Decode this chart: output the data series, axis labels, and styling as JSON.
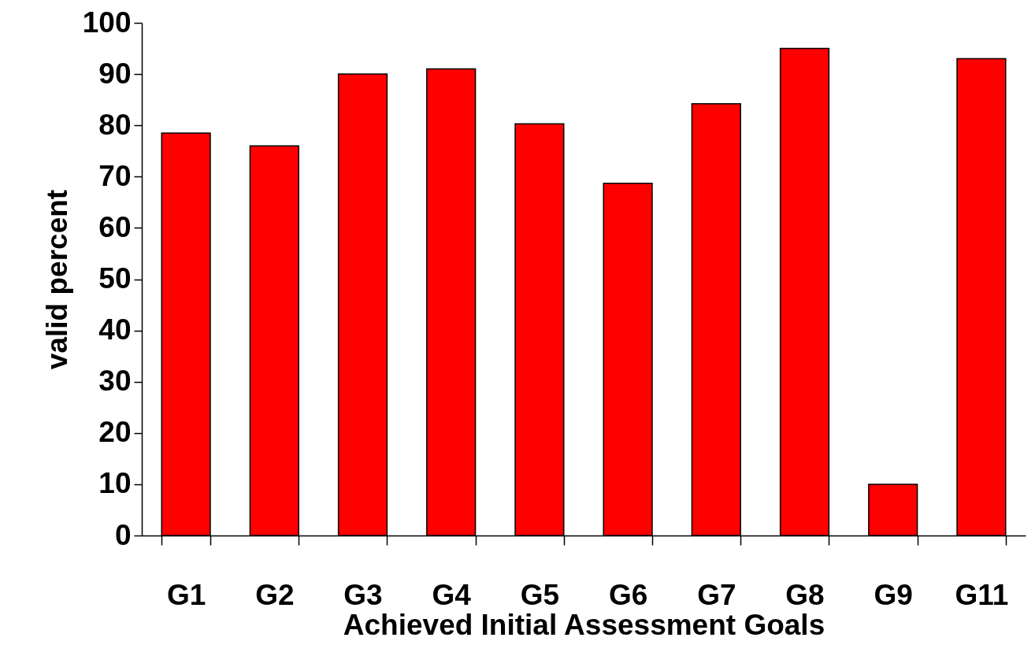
{
  "chart_data": {
    "type": "bar",
    "xlabel": "Achieved Initial Assessment Goals",
    "ylabel": "valid percent",
    "categories": [
      "G1",
      "G2",
      "G3",
      "G4",
      "G5",
      "G6",
      "G7",
      "G8",
      "G9",
      "G11"
    ],
    "values": [
      78.5,
      76,
      90,
      91,
      80.3,
      68.7,
      84.2,
      95,
      10,
      93
    ],
    "color": "#ff0000",
    "ylim": [
      0,
      100
    ],
    "yticks": [
      0,
      10,
      20,
      30,
      40,
      50,
      60,
      70,
      80,
      90,
      100
    ],
    "grid": false
  }
}
